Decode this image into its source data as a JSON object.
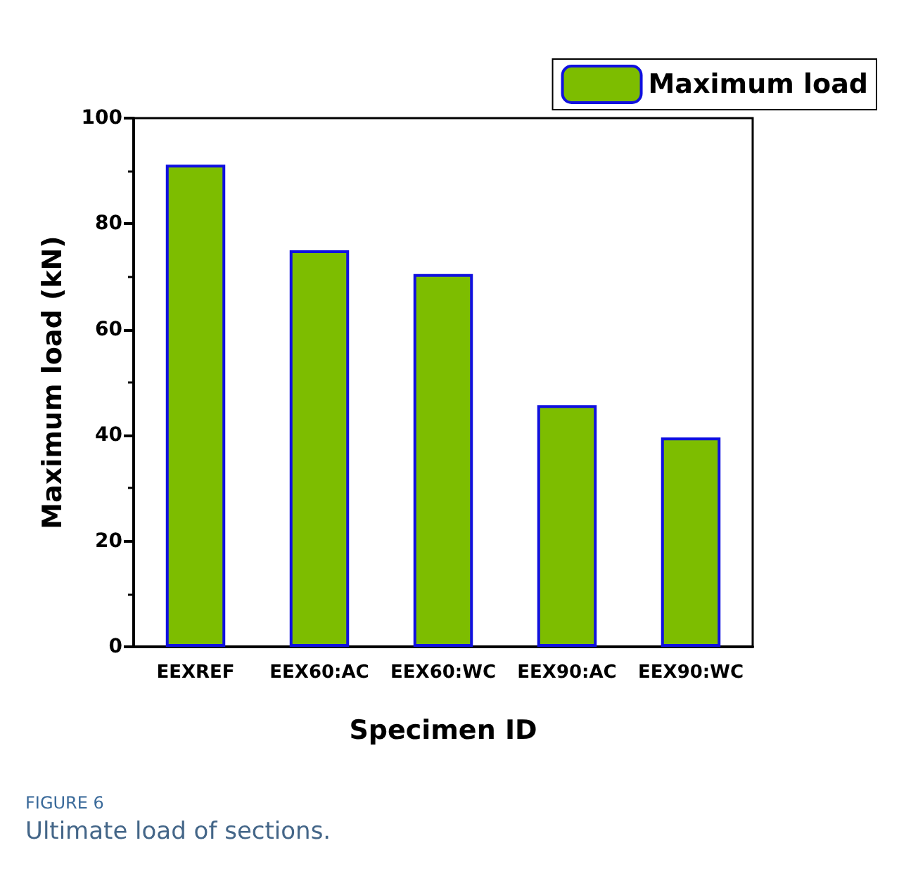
{
  "chart_data": {
    "type": "bar",
    "xlabel": "Specimen ID",
    "ylabel": "Maximum load (kN)",
    "categories": [
      "EEXREF",
      "EEX60:AC",
      "EEX60:WC",
      "EEX90:AC",
      "EEX90:WC"
    ],
    "series": [
      {
        "name": "Maximum load",
        "color": "#7dbd00",
        "values": [
          91.2,
          75,
          70.5,
          45.7,
          39.6
        ]
      }
    ],
    "ylim": [
      0,
      100
    ],
    "yticks": [
      0,
      20,
      40,
      60,
      80,
      100
    ],
    "grid": false,
    "legend": "top right",
    "annotations": [
      "FIGURE 6",
      "Ultimate load of sections."
    ]
  }
}
